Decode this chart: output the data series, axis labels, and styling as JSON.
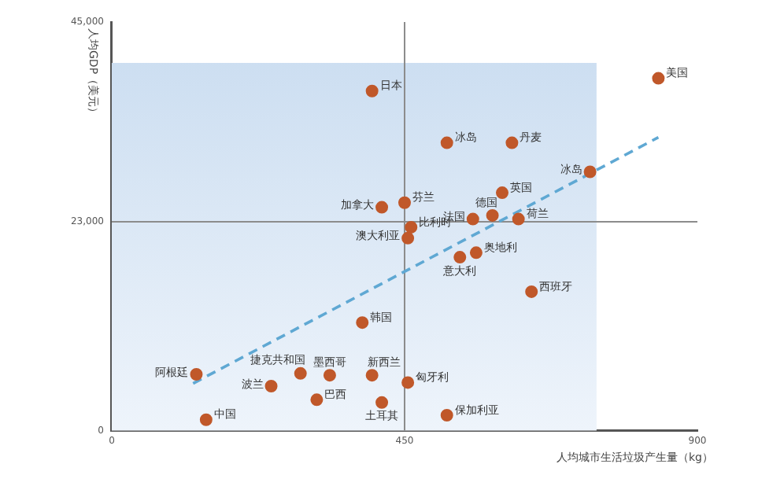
{
  "chart_data": {
    "type": "scatter",
    "xlabel": "人均城市生活垃圾产生量（kg）",
    "ylabel": "人均GDP（美元）",
    "xlim": [
      0,
      900
    ],
    "xticks": [
      0,
      450,
      900
    ],
    "ylim": [
      0,
      45000
    ],
    "yticks": [
      0,
      {
        "value": 23000,
        "label": "23,000"
      },
      {
        "value": 45000,
        "label": "45,000"
      }
    ],
    "grid": false,
    "legend": false,
    "marker": "circle",
    "bands": [
      {
        "axis": "x",
        "from": 0,
        "to": 745,
        "color": "#c9dcf0"
      }
    ],
    "ref_lines": [
      {
        "axis": "x",
        "value": 450,
        "color": "#8c8c8c"
      },
      {
        "axis": "y",
        "value": 23000,
        "color": "#8c8c8c"
      }
    ],
    "series": [
      {
        "name": "日本",
        "color": "#c0582a",
        "x": [
          400
        ],
        "values": [
          37400
        ]
      },
      {
        "name": "加拿大",
        "color": "#c0582a",
        "x": [
          415
        ],
        "values": [
          24600
        ]
      },
      {
        "name": "芬兰",
        "color": "#c0582a",
        "x": [
          450
        ],
        "values": [
          25100
        ]
      },
      {
        "name": "比利时",
        "color": "#c0582a",
        "x": [
          460
        ],
        "values": [
          22400
        ]
      },
      {
        "name": "澳大利亚",
        "color": "#c0582a",
        "x": [
          455
        ],
        "values": [
          21200
        ]
      },
      {
        "name": "美国",
        "color": "#c0582a",
        "x": [
          840
        ],
        "values": [
          38800
        ]
      },
      {
        "name": "冰岛",
        "color": "#c0582a",
        "x": [
          515
        ],
        "values": [
          31700
        ]
      },
      {
        "name": "丹麦",
        "color": "#c0582a",
        "x": [
          615
        ],
        "values": [
          31700
        ]
      },
      {
        "name": "冰岛",
        "color": "#c0582a",
        "x": [
          735
        ],
        "values": [
          28500
        ]
      },
      {
        "name": "英国",
        "color": "#c0582a",
        "x": [
          600
        ],
        "values": [
          26200
        ]
      },
      {
        "name": "法国",
        "color": "#c0582a",
        "x": [
          555
        ],
        "values": [
          23300
        ]
      },
      {
        "name": "德国",
        "color": "#c0582a",
        "x": [
          585
        ],
        "values": [
          23700
        ]
      },
      {
        "name": "荷兰",
        "color": "#c0582a",
        "x": [
          625
        ],
        "values": [
          23300
        ]
      },
      {
        "name": "奥地利",
        "color": "#c0582a",
        "x": [
          560
        ],
        "values": [
          19600
        ]
      },
      {
        "name": "意大利",
        "color": "#c0582a",
        "x": [
          535
        ],
        "values": [
          19100
        ]
      },
      {
        "name": "西班牙",
        "color": "#c0582a",
        "x": [
          645
        ],
        "values": [
          15300
        ]
      },
      {
        "name": "韩国",
        "color": "#c0582a",
        "x": [
          385
        ],
        "values": [
          11900
        ]
      },
      {
        "name": "阿根廷",
        "color": "#c0582a",
        "x": [
          130
        ],
        "values": [
          6200
        ]
      },
      {
        "name": "捷克共和国",
        "color": "#c0582a",
        "x": [
          290
        ],
        "values": [
          6300
        ]
      },
      {
        "name": "墨西哥",
        "color": "#c0582a",
        "x": [
          335
        ],
        "values": [
          6100
        ]
      },
      {
        "name": "新西兰",
        "color": "#c0582a",
        "x": [
          400
        ],
        "values": [
          6100
        ]
      },
      {
        "name": "波兰",
        "color": "#c0582a",
        "x": [
          245
        ],
        "values": [
          4900
        ]
      },
      {
        "name": "巴西",
        "color": "#c0582a",
        "x": [
          315
        ],
        "values": [
          3400
        ]
      },
      {
        "name": "土耳其",
        "color": "#c0582a",
        "x": [
          415
        ],
        "values": [
          3100
        ]
      },
      {
        "name": "中国",
        "color": "#c0582a",
        "x": [
          145
        ],
        "values": [
          1200
        ]
      },
      {
        "name": "匈牙利",
        "color": "#c0582a",
        "x": [
          455
        ],
        "values": [
          5300
        ]
      },
      {
        "name": "保加利亚",
        "color": "#c0582a",
        "x": [
          515
        ],
        "values": [
          1700
        ]
      },
      {
        "type": "line",
        "color": "#5fa8d3",
        "line_style": "dashed",
        "marker": "none",
        "x": [
          125,
          840
        ],
        "values": [
          5200,
          32300
        ]
      }
    ]
  }
}
